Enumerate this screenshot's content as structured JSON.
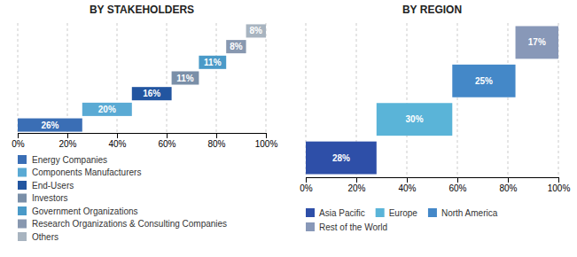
{
  "chart_data": [
    {
      "type": "waterfall",
      "orientation": "horizontal",
      "title": "BY STAKEHOLDERS",
      "categories": [
        "Energy Companies",
        "Components Manufacturers",
        "End-Users",
        "Investors",
        "Government Organizations",
        "Research Organizations & Consulting Companies",
        "Others"
      ],
      "values": [
        26,
        20,
        16,
        11,
        11,
        8,
        8
      ],
      "value_labels": [
        "26%",
        "20%",
        "16%",
        "11%",
        "11%",
        "8%",
        "8%"
      ],
      "colors": [
        "#3a6eb5",
        "#5aaad4",
        "#2255a0",
        "#7a8fa8",
        "#4a9ac8",
        "#8898b0",
        "#a8b4c0"
      ],
      "xlim": [
        0,
        100
      ],
      "xticks": [
        {
          "value": 0,
          "label": "0%"
        },
        {
          "value": 20,
          "label": "20%"
        },
        {
          "value": 40,
          "label": "40%"
        },
        {
          "value": 60,
          "label": "60%"
        },
        {
          "value": 80,
          "label": "80%"
        },
        {
          "value": 100,
          "label": "100%"
        }
      ],
      "grid": true,
      "data_labels": true,
      "tick_labels": "x",
      "legend": "bottom"
    },
    {
      "type": "waterfall",
      "orientation": "horizontal",
      "title": "BY REGION",
      "categories": [
        "Asia Pacific",
        "Europe",
        "North America",
        "Rest of the World"
      ],
      "values": [
        28,
        30,
        25,
        17
      ],
      "value_labels": [
        "28%",
        "30%",
        "25%",
        "17%"
      ],
      "colors": [
        "#2e4fa8",
        "#5ab4d8",
        "#4488c8",
        "#8898b8"
      ],
      "xlim": [
        0,
        100
      ],
      "xticks": [
        {
          "value": 0,
          "label": "0%"
        },
        {
          "value": 20,
          "label": "20%"
        },
        {
          "value": 40,
          "label": "40%"
        },
        {
          "value": 60,
          "label": "60%"
        },
        {
          "value": 80,
          "label": "80%"
        },
        {
          "value": 100,
          "label": "100%"
        }
      ],
      "grid": true,
      "data_labels": true,
      "tick_labels": "x",
      "legend": "bottom"
    }
  ]
}
